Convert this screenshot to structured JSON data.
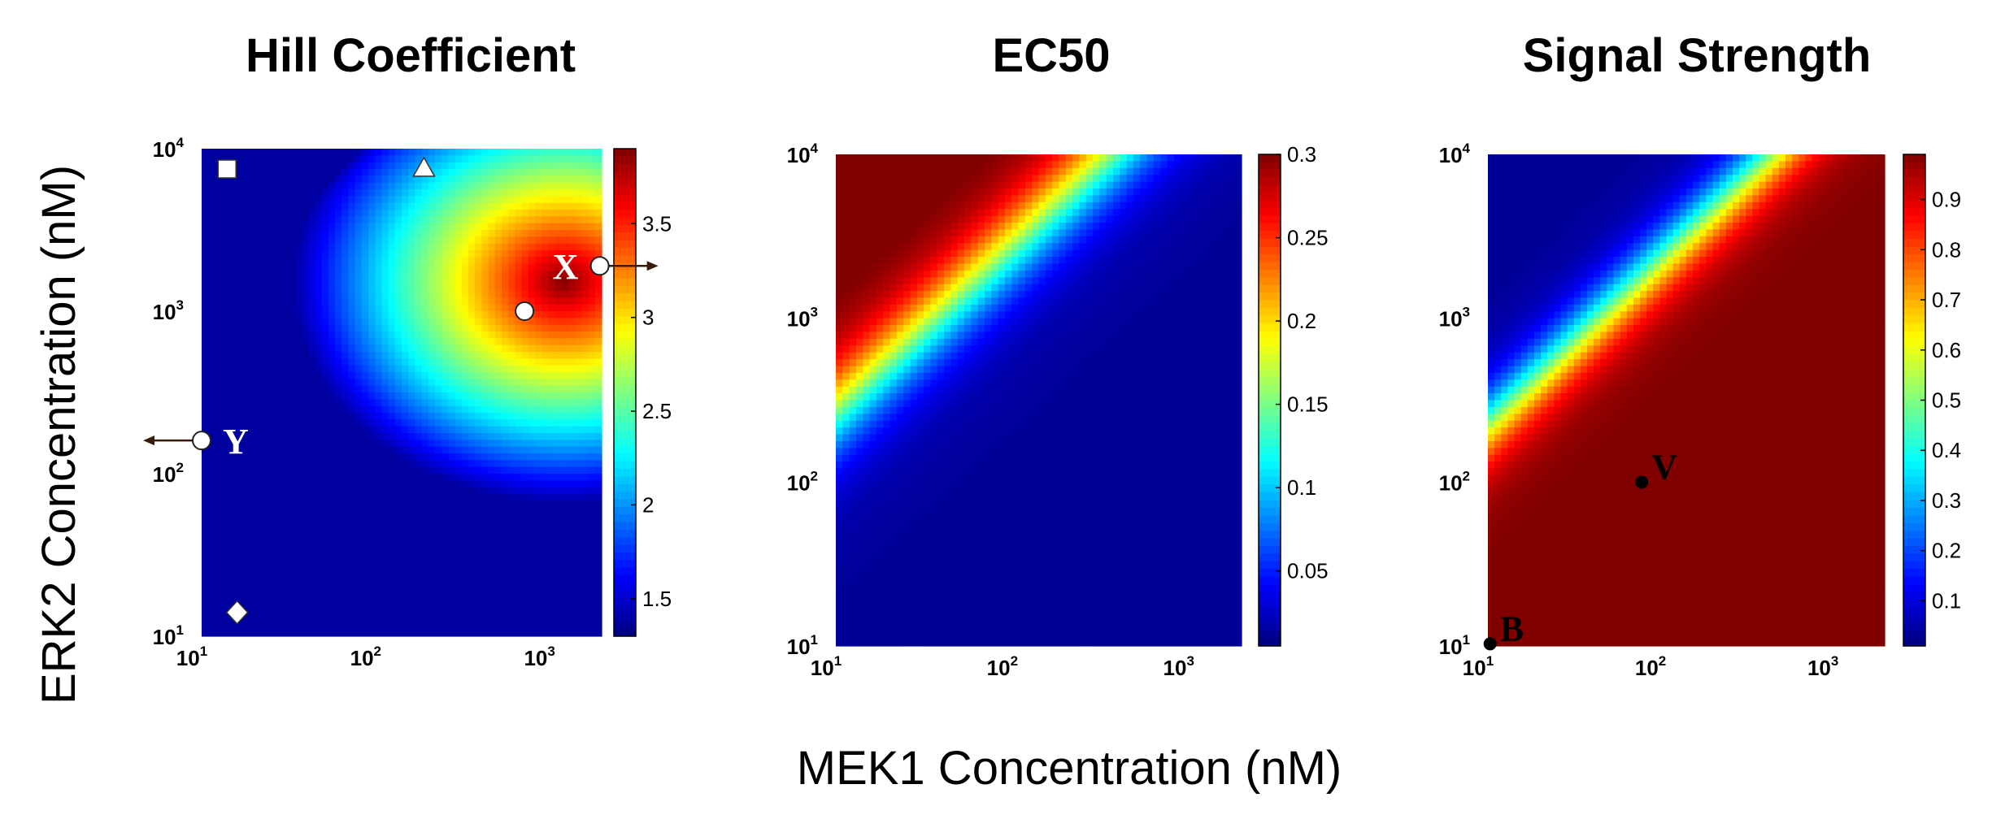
{
  "xlabel": "MEK1 Concentration (nM)",
  "ylabel": "ERK2 Concentration (nM)",
  "chart_data": [
    {
      "type": "heatmap",
      "title": "Hill Coefficient",
      "x_scale": "log",
      "y_scale": "log",
      "xlim": [
        10,
        2000
      ],
      "ylim": [
        10,
        10000
      ],
      "x_ticks": [
        {
          "base": "10",
          "exp": "1"
        },
        {
          "base": "10",
          "exp": "2"
        },
        {
          "base": "10",
          "exp": "3"
        }
      ],
      "y_ticks": [
        {
          "base": "10",
          "exp": "1"
        },
        {
          "base": "10",
          "exp": "2"
        },
        {
          "base": "10",
          "exp": "3"
        },
        {
          "base": "10",
          "exp": "4"
        }
      ],
      "colorbar_range": [
        1.3,
        3.9
      ],
      "colorbar_ticks": [
        "1.5",
        "2",
        "2.5",
        "3",
        "3.5"
      ],
      "colorbar_tick_values": [
        1.5,
        2,
        2.5,
        3,
        3.5
      ],
      "colormap": "jet",
      "description_of_field": {
        "peak": {
          "mek1": 1200,
          "erk2": 1500,
          "value": 3.9
        },
        "low_region": "top-left (low MEK1, high ERK2) and bottom-left corner"
      },
      "markers": [
        {
          "shape": "square",
          "mek1": 14,
          "erk2": 7500,
          "label": ""
        },
        {
          "shape": "triangle",
          "mek1": 190,
          "erk2": 7600,
          "label": ""
        },
        {
          "shape": "circle",
          "mek1": 720,
          "erk2": 1000,
          "label": ""
        },
        {
          "shape": "circle",
          "mek1": 1950,
          "erk2": 1900,
          "label": "X",
          "arrow": "right"
        },
        {
          "shape": "circle",
          "mek1": 10,
          "erk2": 160,
          "label": "Y",
          "arrow": "left"
        },
        {
          "shape": "diamond",
          "mek1": 16,
          "erk2": 14,
          "label": ""
        }
      ]
    },
    {
      "type": "heatmap",
      "title": "EC50",
      "x_scale": "log",
      "y_scale": "log",
      "xlim": [
        10,
        2000
      ],
      "ylim": [
        10,
        10000
      ],
      "x_ticks": [
        {
          "base": "10",
          "exp": "1"
        },
        {
          "base": "10",
          "exp": "2"
        },
        {
          "base": "10",
          "exp": "3"
        }
      ],
      "y_ticks": [
        {
          "base": "10",
          "exp": "1"
        },
        {
          "base": "10",
          "exp": "2"
        },
        {
          "base": "10",
          "exp": "3"
        },
        {
          "base": "10",
          "exp": "4"
        }
      ],
      "colorbar_range": [
        0.005,
        0.3
      ],
      "colorbar_ticks": [
        "0.05",
        "0.1",
        "0.15",
        "0.2",
        "0.25",
        "0.3"
      ],
      "colorbar_tick_values": [
        0.05,
        0.1,
        0.15,
        0.2,
        0.25,
        0.3
      ],
      "colormap": "jet",
      "description_of_field": "high (~0.3) at high ERK2 / low MEK1, transition band along ERK2 ≈ 40 × MEK1, low elsewhere",
      "markers": []
    },
    {
      "type": "heatmap",
      "title": "Signal Strength",
      "x_scale": "log",
      "y_scale": "log",
      "xlim": [
        10,
        2000
      ],
      "ylim": [
        10,
        10000
      ],
      "x_ticks": [
        {
          "base": "10",
          "exp": "1"
        },
        {
          "base": "10",
          "exp": "2"
        },
        {
          "base": "10",
          "exp": "3"
        }
      ],
      "y_ticks": [
        {
          "base": "10",
          "exp": "1"
        },
        {
          "base": "10",
          "exp": "2"
        },
        {
          "base": "10",
          "exp": "3"
        },
        {
          "base": "10",
          "exp": "4"
        }
      ],
      "colorbar_range": [
        0.01,
        0.99
      ],
      "colorbar_ticks": [
        "0.1",
        "0.2",
        "0.3",
        "0.4",
        "0.5",
        "0.6",
        "0.7",
        "0.8",
        "0.9"
      ],
      "colorbar_tick_values": [
        0.1,
        0.2,
        0.3,
        0.4,
        0.5,
        0.6,
        0.7,
        0.8,
        0.9
      ],
      "colormap": "jet",
      "description_of_field": "low (~0) at high ERK2 / low MEK1, transition band along ERK2 ≈ 20 × MEK1, near 1 elsewhere",
      "markers": [
        {
          "shape": "dot",
          "mek1": 78,
          "erk2": 100,
          "label": "V"
        },
        {
          "shape": "dot",
          "mek1": 10.3,
          "erk2": 10.3,
          "label": "B"
        }
      ]
    }
  ]
}
